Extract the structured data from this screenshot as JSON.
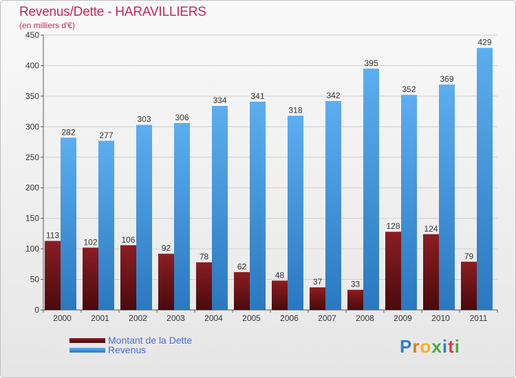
{
  "header": {
    "title": "Revenus/Dette - HARAVILLIERS",
    "subtitle": "(en milliers d'€)"
  },
  "colors": {
    "title": "#c0285f",
    "dette_top": "#8a1e23",
    "dette_bottom": "#4a0a0c",
    "revenus_top": "#5caef0",
    "revenus_bottom": "#2a78c0",
    "legend_text": "#4a6ad6"
  },
  "chart_data": {
    "type": "bar",
    "title": "Revenus/Dette - HARAVILLIERS",
    "ylabel": "(en milliers d'€)",
    "xlabel": "",
    "ylim": [
      0,
      450
    ],
    "yticks": [
      0,
      50,
      100,
      150,
      200,
      250,
      300,
      350,
      400,
      450
    ],
    "grid": true,
    "legend_position": "bottom-left",
    "categories": [
      "2000",
      "2001",
      "2002",
      "2003",
      "2004",
      "2005",
      "2006",
      "2007",
      "2008",
      "2009",
      "2010",
      "2011"
    ],
    "series": [
      {
        "name": "Montant de la Dette",
        "values": [
          113,
          102,
          106,
          92,
          78,
          62,
          48,
          37,
          33,
          128,
          124,
          79
        ]
      },
      {
        "name": "Revenus",
        "values": [
          282,
          277,
          303,
          306,
          334,
          341,
          318,
          342,
          395,
          352,
          369,
          429
        ]
      }
    ]
  },
  "legend": {
    "items": [
      {
        "label": "Montant de la Dette"
      },
      {
        "label": "Revenus"
      }
    ]
  },
  "logo": {
    "letters": [
      "P",
      "r",
      "o",
      "x",
      "i",
      "t",
      "i"
    ],
    "letter_colors": [
      "#2f7fc8",
      "#e8751a",
      "#f2b51a",
      "#4aaa3a",
      "#2f7fc8",
      "#e23a3a",
      "#4aaa3a"
    ]
  }
}
